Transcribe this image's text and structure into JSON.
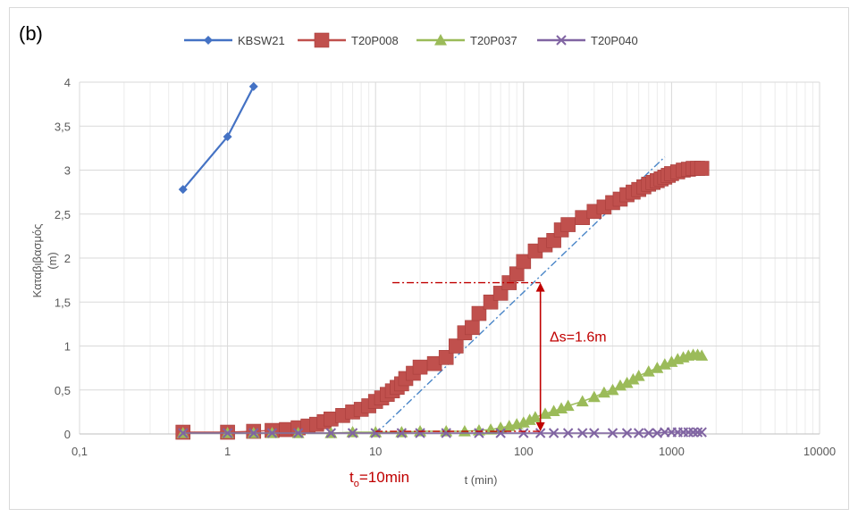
{
  "panel_label": "(b)",
  "chart_data": {
    "type": "scatter",
    "x_scale": "log",
    "xlabel": "t (min)",
    "ylabel_line1": "Καταβιβασμός",
    "ylabel_line2": "(m)",
    "xlim": [
      0.1,
      10000
    ],
    "ylim": [
      0,
      4
    ],
    "x_ticks": [
      0.1,
      1,
      10,
      100,
      1000,
      10000
    ],
    "x_tick_labels": [
      "0,1",
      "1",
      "10",
      "100",
      "1000",
      "10000"
    ],
    "y_ticks": [
      0,
      0.5,
      1,
      1.5,
      2,
      2.5,
      3,
      3.5,
      4
    ],
    "y_tick_labels": [
      "0",
      "0,5",
      "1",
      "1,5",
      "2",
      "2,5",
      "3",
      "3,5",
      "4"
    ],
    "grid": true,
    "legend_position": "top",
    "series": [
      {
        "name": "KBSW21",
        "color": "#4472c4",
        "marker": "diamond",
        "x": [
          0.5,
          1,
          1.5
        ],
        "y": [
          2.78,
          3.38,
          3.95
        ]
      },
      {
        "name": "T20P008",
        "color": "#c0504d",
        "marker": "square",
        "x": [
          0.5,
          1,
          1.5,
          2,
          2.5,
          3,
          3.5,
          4,
          4.5,
          5,
          6,
          7,
          8,
          9,
          10,
          11,
          12,
          13,
          14,
          15,
          16,
          18,
          20,
          25,
          30,
          35,
          40,
          45,
          50,
          60,
          70,
          80,
          90,
          100,
          120,
          140,
          160,
          180,
          200,
          250,
          300,
          350,
          400,
          450,
          500,
          550,
          600,
          650,
          700,
          750,
          800,
          850,
          900,
          950,
          1000,
          1100,
          1200,
          1300,
          1400,
          1500,
          1600
        ],
        "y": [
          0.02,
          0.02,
          0.03,
          0.04,
          0.05,
          0.07,
          0.09,
          0.11,
          0.14,
          0.17,
          0.21,
          0.25,
          0.28,
          0.32,
          0.37,
          0.41,
          0.45,
          0.49,
          0.53,
          0.57,
          0.63,
          0.69,
          0.76,
          0.8,
          0.87,
          1.0,
          1.15,
          1.21,
          1.37,
          1.5,
          1.6,
          1.72,
          1.82,
          1.96,
          2.08,
          2.15,
          2.2,
          2.32,
          2.38,
          2.46,
          2.53,
          2.58,
          2.63,
          2.67,
          2.72,
          2.75,
          2.78,
          2.81,
          2.84,
          2.86,
          2.88,
          2.9,
          2.92,
          2.94,
          2.96,
          2.98,
          3.0,
          3.01,
          3.02,
          3.02,
          3.02
        ]
      },
      {
        "name": "T20P037",
        "color": "#9bbb59",
        "marker": "triangle",
        "x": [
          0.5,
          1,
          1.5,
          2,
          3,
          5,
          7,
          10,
          15,
          20,
          30,
          40,
          50,
          60,
          70,
          80,
          90,
          100,
          110,
          120,
          140,
          160,
          180,
          200,
          250,
          300,
          350,
          400,
          450,
          500,
          550,
          600,
          700,
          800,
          900,
          1000,
          1100,
          1200,
          1300,
          1400,
          1500,
          1600
        ],
        "y": [
          0.01,
          0.01,
          0.01,
          0.01,
          0.01,
          0.01,
          0.02,
          0.02,
          0.02,
          0.03,
          0.03,
          0.03,
          0.04,
          0.05,
          0.07,
          0.09,
          0.11,
          0.13,
          0.16,
          0.19,
          0.23,
          0.26,
          0.29,
          0.32,
          0.37,
          0.42,
          0.47,
          0.5,
          0.55,
          0.58,
          0.62,
          0.66,
          0.71,
          0.75,
          0.79,
          0.82,
          0.85,
          0.87,
          0.89,
          0.9,
          0.9,
          0.89
        ]
      },
      {
        "name": "T20P040",
        "color": "#8064a2",
        "marker": "x",
        "x": [
          0.5,
          1,
          1.5,
          2,
          3,
          5,
          7,
          10,
          15,
          20,
          30,
          50,
          70,
          100,
          130,
          160,
          200,
          250,
          300,
          400,
          500,
          600,
          700,
          800,
          900,
          1000,
          1100,
          1200,
          1300,
          1400,
          1500,
          1600
        ],
        "y": [
          0.01,
          0.01,
          0.01,
          0.01,
          0.01,
          0.01,
          0.01,
          0.01,
          0.01,
          0.01,
          0.01,
          0.01,
          0.01,
          0.01,
          0.01,
          0.01,
          0.01,
          0.01,
          0.01,
          0.01,
          0.01,
          0.01,
          0.01,
          0.01,
          0.02,
          0.02,
          0.02,
          0.02,
          0.02,
          0.02,
          0.02,
          0.02
        ]
      }
    ],
    "annotations": {
      "fit_line": {
        "color": "#4a86c8",
        "from": [
          10,
          0.0
        ],
        "to": [
          900,
          3.15
        ]
      },
      "ref_line": {
        "color": "#c00000",
        "from": [
          13,
          1.72
        ],
        "to": [
          130,
          1.72
        ]
      },
      "ref_baseline": {
        "color": "#c00000",
        "from": [
          10,
          0.03
        ],
        "to": [
          130,
          0.03
        ]
      },
      "delta_arrow": {
        "color": "#c00000",
        "x": 130,
        "y_from": 0.03,
        "y_to": 1.72
      },
      "delta_label": {
        "text": "Δs=1.6m",
        "color": "#c00000",
        "x": 150,
        "y": 1.05
      },
      "t0_label": {
        "text": "t",
        "subscript": "o",
        "suffix": "=10min",
        "color": "#c00000"
      }
    }
  }
}
